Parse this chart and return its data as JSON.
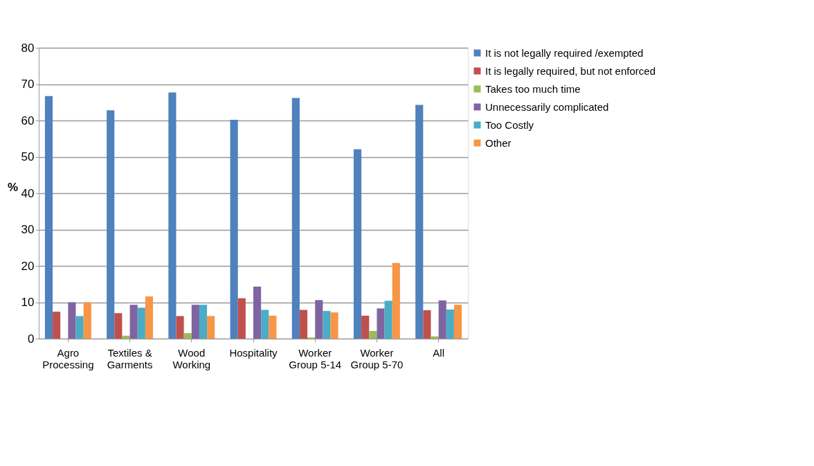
{
  "chart_data": {
    "type": "bar",
    "ylabel": "%",
    "categories": [
      "Agro Processing",
      "Textiles & Garments",
      "Wood Working",
      "Hospitality",
      "Worker Group 5-14",
      "Worker Group 5-70",
      "All"
    ],
    "series": [
      {
        "name": "It is not legally required /exempted",
        "color": "#4f81bd",
        "values": [
          66.7,
          62.8,
          67.7,
          60.2,
          66.2,
          52.1,
          64.3
        ]
      },
      {
        "name": "It is legally required, but not enforced",
        "color": "#c0504d",
        "values": [
          7.4,
          7.0,
          6.2,
          11.1,
          7.9,
          6.3,
          7.8
        ]
      },
      {
        "name": "Takes too much time",
        "color": "#9bbb59",
        "values": [
          0,
          0.8,
          1.5,
          0,
          0.3,
          2.1,
          0.6
        ]
      },
      {
        "name": "Unnecessarily complicated",
        "color": "#8064a2",
        "values": [
          10.0,
          9.3,
          9.3,
          14.3,
          10.6,
          8.3,
          10.5
        ]
      },
      {
        "name": "Too Costly",
        "color": "#4bacc6",
        "values": [
          6.2,
          8.5,
          9.3,
          7.9,
          7.6,
          10.4,
          8.0
        ]
      },
      {
        "name": "Other",
        "color": "#f79646",
        "values": [
          10.0,
          11.6,
          6.2,
          6.3,
          7.2,
          20.8,
          9.3
        ]
      }
    ],
    "ylim": [
      0,
      80
    ],
    "yticks": [
      0,
      10,
      20,
      30,
      40,
      50,
      60,
      70,
      80
    ],
    "grid": "y",
    "legend": "right"
  }
}
